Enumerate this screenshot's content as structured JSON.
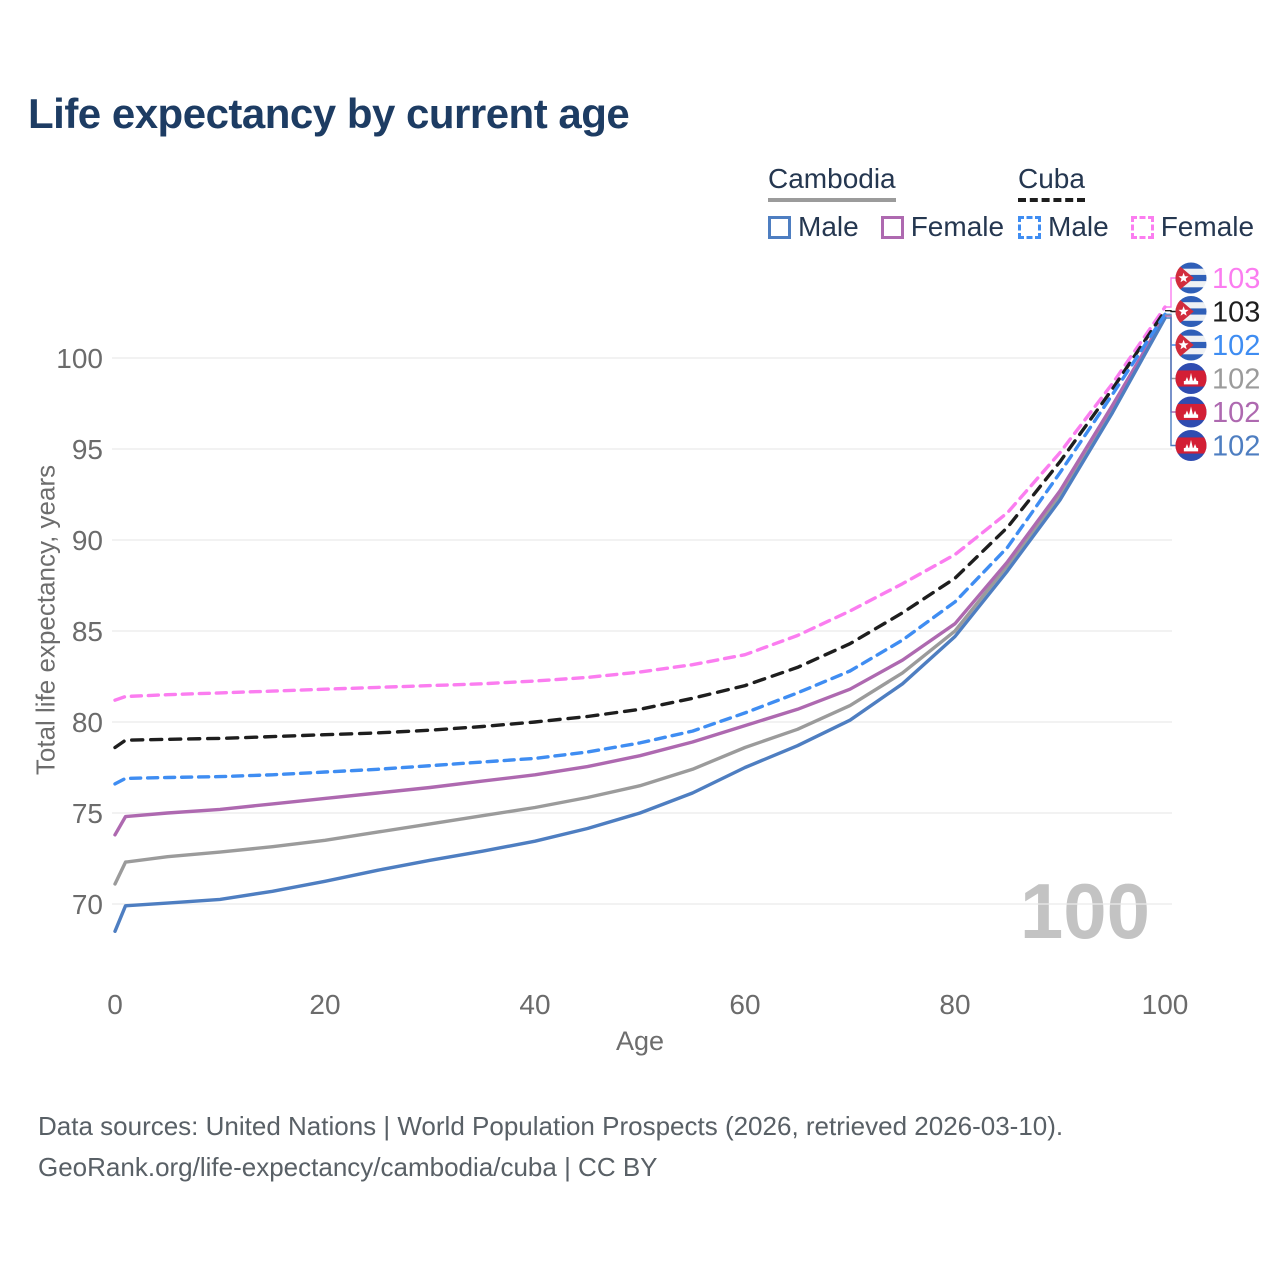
{
  "title": "Life expectancy by current age",
  "legend": {
    "groups": [
      {
        "label": "Cambodia",
        "line_style": "solid",
        "line_color": "#9b9b9b",
        "items": [
          {
            "label": "Male",
            "color": "#4e7ec1"
          },
          {
            "label": "Female",
            "color": "#ae69b0"
          }
        ]
      },
      {
        "label": "Cuba",
        "line_style": "dashed",
        "line_color": "#1e1e1e",
        "items": [
          {
            "label": "Male",
            "color": "#3f8df2"
          },
          {
            "label": "Female",
            "color": "#fb7df0"
          }
        ]
      }
    ]
  },
  "watermark": "100",
  "footer": {
    "line1": "Data sources: United Nations | World Population Prospects (2026, retrieved 2026-03-10).",
    "line2": "GeoRank.org/life-expectancy/cambodia/cuba | CC BY"
  },
  "chart_data": {
    "type": "line",
    "title": "Life expectancy by current age",
    "xlabel": "Age",
    "ylabel": "Total life expectancy, years",
    "xlim": [
      0,
      100
    ],
    "ylim": [
      67,
      104
    ],
    "x_ticks": [
      0,
      20,
      40,
      60,
      80,
      100
    ],
    "y_ticks": [
      70,
      75,
      80,
      85,
      90,
      95,
      100
    ],
    "grid": "horizontal",
    "legend_position": "top-right",
    "ages": [
      0,
      1,
      5,
      10,
      15,
      20,
      25,
      30,
      35,
      40,
      45,
      50,
      55,
      60,
      65,
      70,
      75,
      80,
      85,
      90,
      95,
      100
    ],
    "series": [
      {
        "id": "cuba-female",
        "country": "Cuba",
        "sex": "Female",
        "color": "#fb7df0",
        "dashed": true,
        "end_label": "103",
        "flag": "cuba",
        "values": [
          81.2,
          81.4,
          81.5,
          81.6,
          81.7,
          81.8,
          81.9,
          82.0,
          82.1,
          82.25,
          82.45,
          82.75,
          83.15,
          83.7,
          84.75,
          86.1,
          87.6,
          89.2,
          91.5,
          94.8,
          98.6,
          102.8
        ]
      },
      {
        "id": "cuba-both",
        "country": "Cuba",
        "sex": "Both sexes",
        "color": "#1e1e1e",
        "dashed": true,
        "end_label": "103",
        "flag": "cuba",
        "values": [
          78.6,
          79.0,
          79.05,
          79.1,
          79.2,
          79.3,
          79.4,
          79.55,
          79.75,
          80.0,
          80.3,
          80.7,
          81.3,
          82.0,
          83.0,
          84.3,
          86.0,
          87.9,
          90.7,
          94.3,
          98.3,
          102.6
        ]
      },
      {
        "id": "cuba-male",
        "country": "Cuba",
        "sex": "Male",
        "color": "#3f8df2",
        "dashed": true,
        "end_label": "102",
        "flag": "cuba",
        "values": [
          76.6,
          76.9,
          76.95,
          77.0,
          77.1,
          77.25,
          77.4,
          77.6,
          77.8,
          78.0,
          78.35,
          78.85,
          79.5,
          80.5,
          81.6,
          82.8,
          84.5,
          86.6,
          89.6,
          93.7,
          98.0,
          102.4
        ]
      },
      {
        "id": "cambodia-both",
        "country": "Cambodia",
        "sex": "Both sexes",
        "color": "#9b9b9b",
        "dashed": false,
        "end_label": "102",
        "flag": "cambodia",
        "values": [
          71.1,
          72.3,
          72.6,
          72.85,
          73.15,
          73.5,
          73.95,
          74.4,
          74.85,
          75.3,
          75.85,
          76.5,
          77.4,
          78.6,
          79.6,
          80.9,
          82.7,
          85.0,
          88.6,
          92.5,
          97.3,
          102.35
        ]
      },
      {
        "id": "cambodia-female",
        "country": "Cambodia",
        "sex": "Female",
        "color": "#ae69b0",
        "dashed": false,
        "end_label": "102",
        "flag": "cambodia",
        "values": [
          73.8,
          74.8,
          75.0,
          75.2,
          75.5,
          75.8,
          76.1,
          76.4,
          76.75,
          77.1,
          77.55,
          78.15,
          78.9,
          79.8,
          80.7,
          81.8,
          83.4,
          85.4,
          88.8,
          92.7,
          97.4,
          102.3
        ]
      },
      {
        "id": "cambodia-male",
        "country": "Cambodia",
        "sex": "Male",
        "color": "#4e7ec1",
        "dashed": false,
        "end_label": "102",
        "flag": "cambodia",
        "values": [
          68.5,
          69.9,
          70.05,
          70.25,
          70.7,
          71.25,
          71.85,
          72.4,
          72.9,
          73.45,
          74.15,
          75.0,
          76.1,
          77.5,
          78.7,
          80.1,
          82.1,
          84.7,
          88.3,
          92.2,
          97.0,
          102.2
        ]
      }
    ]
  }
}
